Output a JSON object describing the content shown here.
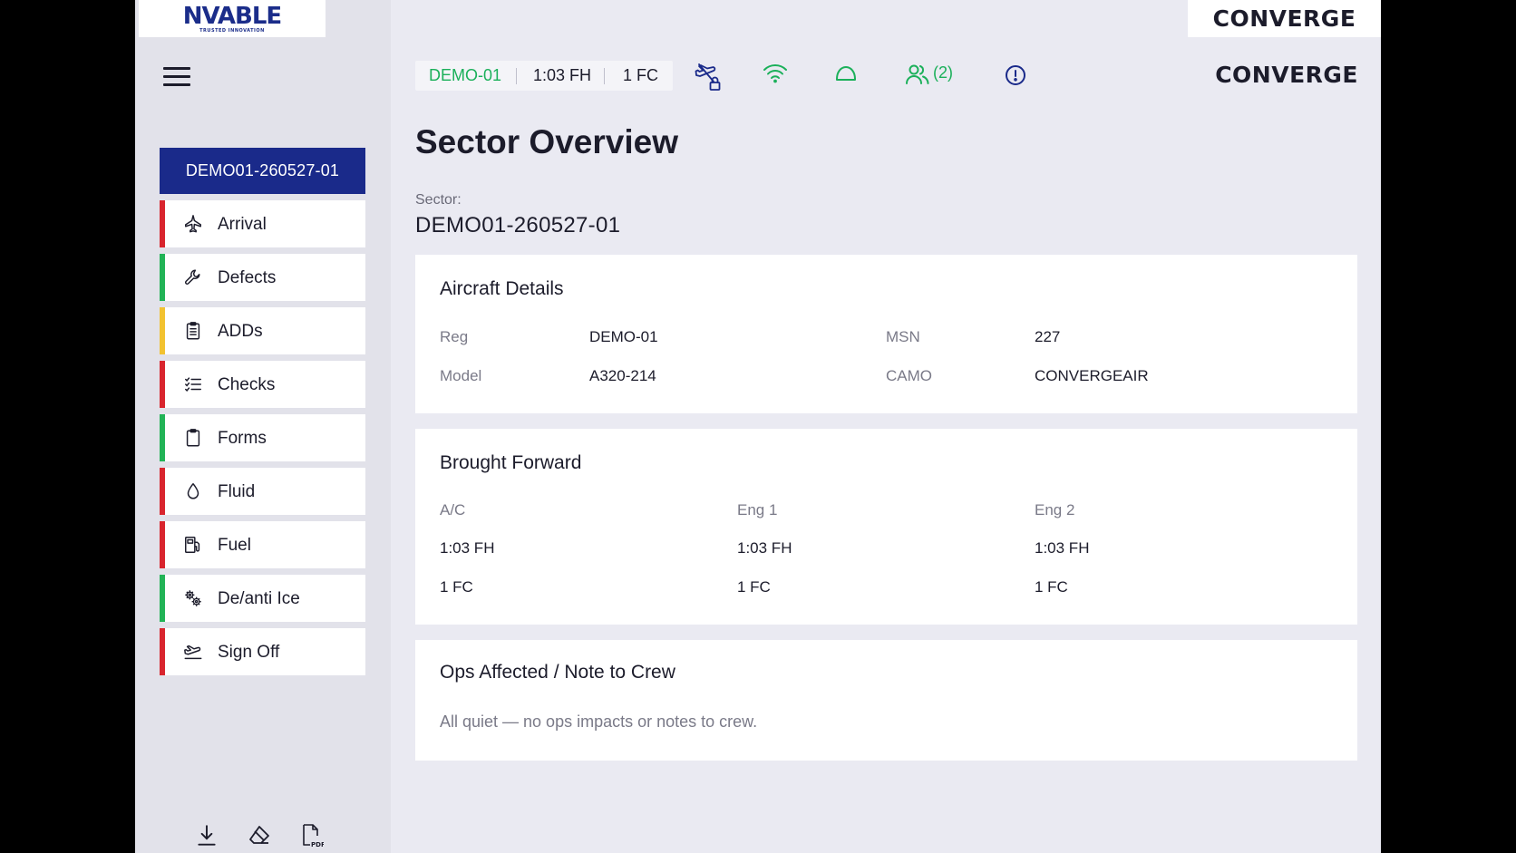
{
  "branding": {
    "left_logo": "NVABLE",
    "left_logo_tagline": "TRUSTED INNOVATION",
    "right_logo": "CONVERGE",
    "header_logo": "CONVERGE"
  },
  "sidebar": {
    "sector_button": "DEMO01-260527-01",
    "items": [
      {
        "label": "Arrival",
        "icon": "plane-icon",
        "status_color": "#d9252e"
      },
      {
        "label": "Defects",
        "icon": "wrench-icon",
        "status_color": "#22b356"
      },
      {
        "label": "ADDs",
        "icon": "clipboard-list-icon",
        "status_color": "#f2c230"
      },
      {
        "label": "Checks",
        "icon": "checklist-icon",
        "status_color": "#d9252e"
      },
      {
        "label": "Forms",
        "icon": "clipboard-icon",
        "status_color": "#22b356"
      },
      {
        "label": "Fluid",
        "icon": "droplet-icon",
        "status_color": "#d9252e"
      },
      {
        "label": "Fuel",
        "icon": "fuel-pump-icon",
        "status_color": "#d9252e"
      },
      {
        "label": "De/anti Ice",
        "icon": "gears-icon",
        "status_color": "#22b356"
      },
      {
        "label": "Sign Off",
        "icon": "takeoff-icon",
        "status_color": "#d9252e"
      }
    ],
    "tools": [
      "download-icon",
      "eraser-icon",
      "pdf-icon"
    ]
  },
  "status_bar": {
    "reg": "DEMO-01",
    "flight_hours": "1:03 FH",
    "flight_cycles": "1 FC",
    "crew_count": "(2)"
  },
  "page": {
    "title": "Sector Overview",
    "sector_label": "Sector:",
    "sector_value": "DEMO01-260527-01"
  },
  "aircraft_details": {
    "title": "Aircraft Details",
    "reg_label": "Reg",
    "reg_value": "DEMO-01",
    "msn_label": "MSN",
    "msn_value": "227",
    "model_label": "Model",
    "model_value": "A320-214",
    "camo_label": "CAMO",
    "camo_value": "CONVERGEAIR"
  },
  "brought_forward": {
    "title": "Brought Forward",
    "columns": [
      {
        "header": "A/C",
        "fh": "1:03 FH",
        "fc": "1 FC"
      },
      {
        "header": "Eng 1",
        "fh": "1:03 FH",
        "fc": "1 FC"
      },
      {
        "header": "Eng 2",
        "fh": "1:03 FH",
        "fc": "1 FC"
      }
    ]
  },
  "ops_affected": {
    "title": "Ops Affected / Note to Crew",
    "note": "All quiet — no ops impacts or notes to crew."
  },
  "colors": {
    "accent_navy": "#1a2a8a",
    "status_green": "#1bb05a",
    "status_red": "#d9252e",
    "status_yellow": "#f2c230"
  }
}
